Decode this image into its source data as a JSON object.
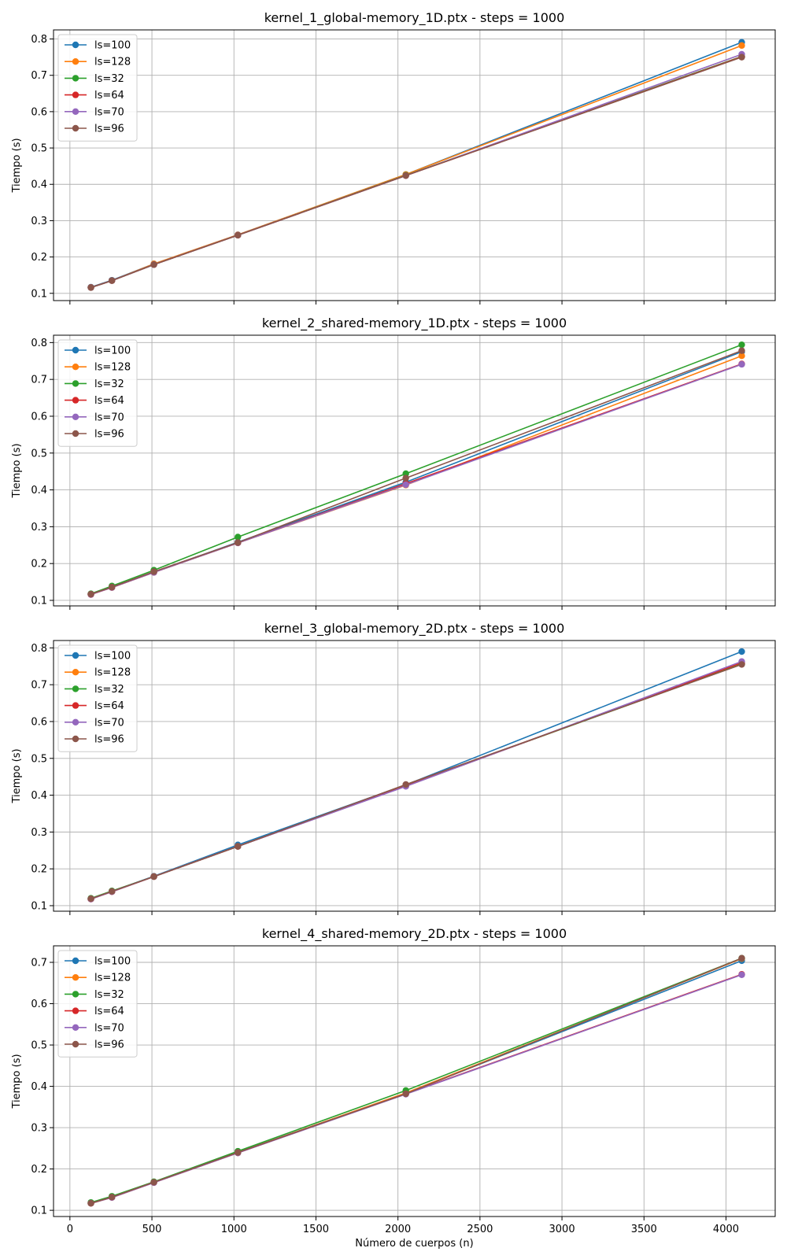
{
  "xlabel": "Número de cuerpos (n)",
  "x_tick_labels": [
    "0",
    "500",
    "1000",
    "1500",
    "2000",
    "2500",
    "3000",
    "3500",
    "4000"
  ],
  "series_colors": {
    "ls=100": "#1f77b4",
    "ls=128": "#ff7f0e",
    "ls=32": "#2ca02c",
    "ls=64": "#d62728",
    "ls=70": "#9467bd",
    "ls=96": "#8c564b"
  },
  "legend_position": "upper-left",
  "grid": true,
  "chart_data": [
    {
      "type": "line",
      "title": "kernel_1_global-memory_1D.ptx - steps = 1000",
      "xlabel": "",
      "ylabel": "Tiempo (s)",
      "xlim": [
        -100,
        4300
      ],
      "ylim": [
        0.08,
        0.825
      ],
      "yticks": [
        "0.1",
        "0.2",
        "0.3",
        "0.4",
        "0.5",
        "0.6",
        "0.7",
        "0.8"
      ],
      "x": [
        128,
        256,
        512,
        1024,
        2048,
        4096
      ],
      "series": [
        {
          "name": "ls=100",
          "values": [
            0.117,
            0.136,
            0.181,
            0.261,
            0.427,
            0.791
          ]
        },
        {
          "name": "ls=128",
          "values": [
            0.116,
            0.135,
            0.181,
            0.261,
            0.427,
            0.782
          ]
        },
        {
          "name": "ls=32",
          "values": [
            0.116,
            0.135,
            0.179,
            0.26,
            0.425,
            0.752
          ]
        },
        {
          "name": "ls=64",
          "values": [
            0.116,
            0.135,
            0.179,
            0.26,
            0.424,
            0.751
          ]
        },
        {
          "name": "ls=70",
          "values": [
            0.116,
            0.135,
            0.179,
            0.26,
            0.424,
            0.758
          ]
        },
        {
          "name": "ls=96",
          "values": [
            0.116,
            0.135,
            0.179,
            0.26,
            0.424,
            0.75
          ]
        }
      ]
    },
    {
      "type": "line",
      "title": "kernel_2_shared-memory_1D.ptx - steps = 1000",
      "xlabel": "",
      "ylabel": "Tiempo (s)",
      "xlim": [
        -100,
        4300
      ],
      "ylim": [
        0.085,
        0.82
      ],
      "yticks": [
        "0.1",
        "0.2",
        "0.3",
        "0.4",
        "0.5",
        "0.6",
        "0.7",
        "0.8"
      ],
      "x": [
        128,
        256,
        512,
        1024,
        2048,
        4096
      ],
      "series": [
        {
          "name": "ls=100",
          "values": [
            0.117,
            0.136,
            0.177,
            0.258,
            0.421,
            0.775
          ]
        },
        {
          "name": "ls=128",
          "values": [
            0.116,
            0.135,
            0.176,
            0.256,
            0.413,
            0.764
          ]
        },
        {
          "name": "ls=32",
          "values": [
            0.118,
            0.139,
            0.182,
            0.272,
            0.444,
            0.794
          ]
        },
        {
          "name": "ls=64",
          "values": [
            0.116,
            0.135,
            0.176,
            0.256,
            0.417,
            0.742
          ]
        },
        {
          "name": "ls=70",
          "values": [
            0.116,
            0.135,
            0.176,
            0.256,
            0.414,
            0.741
          ]
        },
        {
          "name": "ls=96",
          "values": [
            0.117,
            0.136,
            0.178,
            0.257,
            0.432,
            0.778
          ]
        }
      ]
    },
    {
      "type": "line",
      "title": "kernel_3_global-memory_2D.ptx - steps = 1000",
      "xlabel": "",
      "ylabel": "Tiempo (s)",
      "xlim": [
        -100,
        4300
      ],
      "ylim": [
        0.085,
        0.82
      ],
      "yticks": [
        "0.1",
        "0.2",
        "0.3",
        "0.4",
        "0.5",
        "0.6",
        "0.7",
        "0.8"
      ],
      "x": [
        128,
        256,
        512,
        1024,
        2048,
        4096
      ],
      "series": [
        {
          "name": "ls=100",
          "values": [
            0.119,
            0.139,
            0.18,
            0.265,
            0.428,
            0.79
          ]
        },
        {
          "name": "ls=128",
          "values": [
            0.118,
            0.138,
            0.179,
            0.261,
            0.427,
            0.757
          ]
        },
        {
          "name": "ls=32",
          "values": [
            0.12,
            0.14,
            0.179,
            0.261,
            0.427,
            0.756
          ]
        },
        {
          "name": "ls=64",
          "values": [
            0.118,
            0.138,
            0.179,
            0.261,
            0.425,
            0.76
          ]
        },
        {
          "name": "ls=70",
          "values": [
            0.118,
            0.138,
            0.179,
            0.261,
            0.424,
            0.763
          ]
        },
        {
          "name": "ls=96",
          "values": [
            0.119,
            0.139,
            0.179,
            0.261,
            0.429,
            0.755
          ]
        }
      ]
    },
    {
      "type": "line",
      "title": "kernel_4_shared-memory_2D.ptx - steps = 1000",
      "xlabel": "Número de cuerpos (n)",
      "ylabel": "Tiempo (s)",
      "xlim": [
        -100,
        4300
      ],
      "ylim": [
        0.085,
        0.74
      ],
      "yticks": [
        "0.1",
        "0.2",
        "0.3",
        "0.4",
        "0.5",
        "0.6",
        "0.7"
      ],
      "x": [
        128,
        256,
        512,
        1024,
        2048,
        4096
      ],
      "series": [
        {
          "name": "ls=100",
          "values": [
            0.118,
            0.133,
            0.168,
            0.241,
            0.383,
            0.704
          ]
        },
        {
          "name": "ls=128",
          "values": [
            0.117,
            0.132,
            0.168,
            0.24,
            0.384,
            0.709
          ]
        },
        {
          "name": "ls=32",
          "values": [
            0.119,
            0.134,
            0.169,
            0.243,
            0.39,
            0.71
          ]
        },
        {
          "name": "ls=64",
          "values": [
            0.117,
            0.131,
            0.167,
            0.239,
            0.382,
            0.671
          ]
        },
        {
          "name": "ls=70",
          "values": [
            0.117,
            0.131,
            0.167,
            0.239,
            0.381,
            0.67
          ]
        },
        {
          "name": "ls=96",
          "values": [
            0.117,
            0.132,
            0.168,
            0.24,
            0.382,
            0.71
          ]
        }
      ]
    }
  ]
}
